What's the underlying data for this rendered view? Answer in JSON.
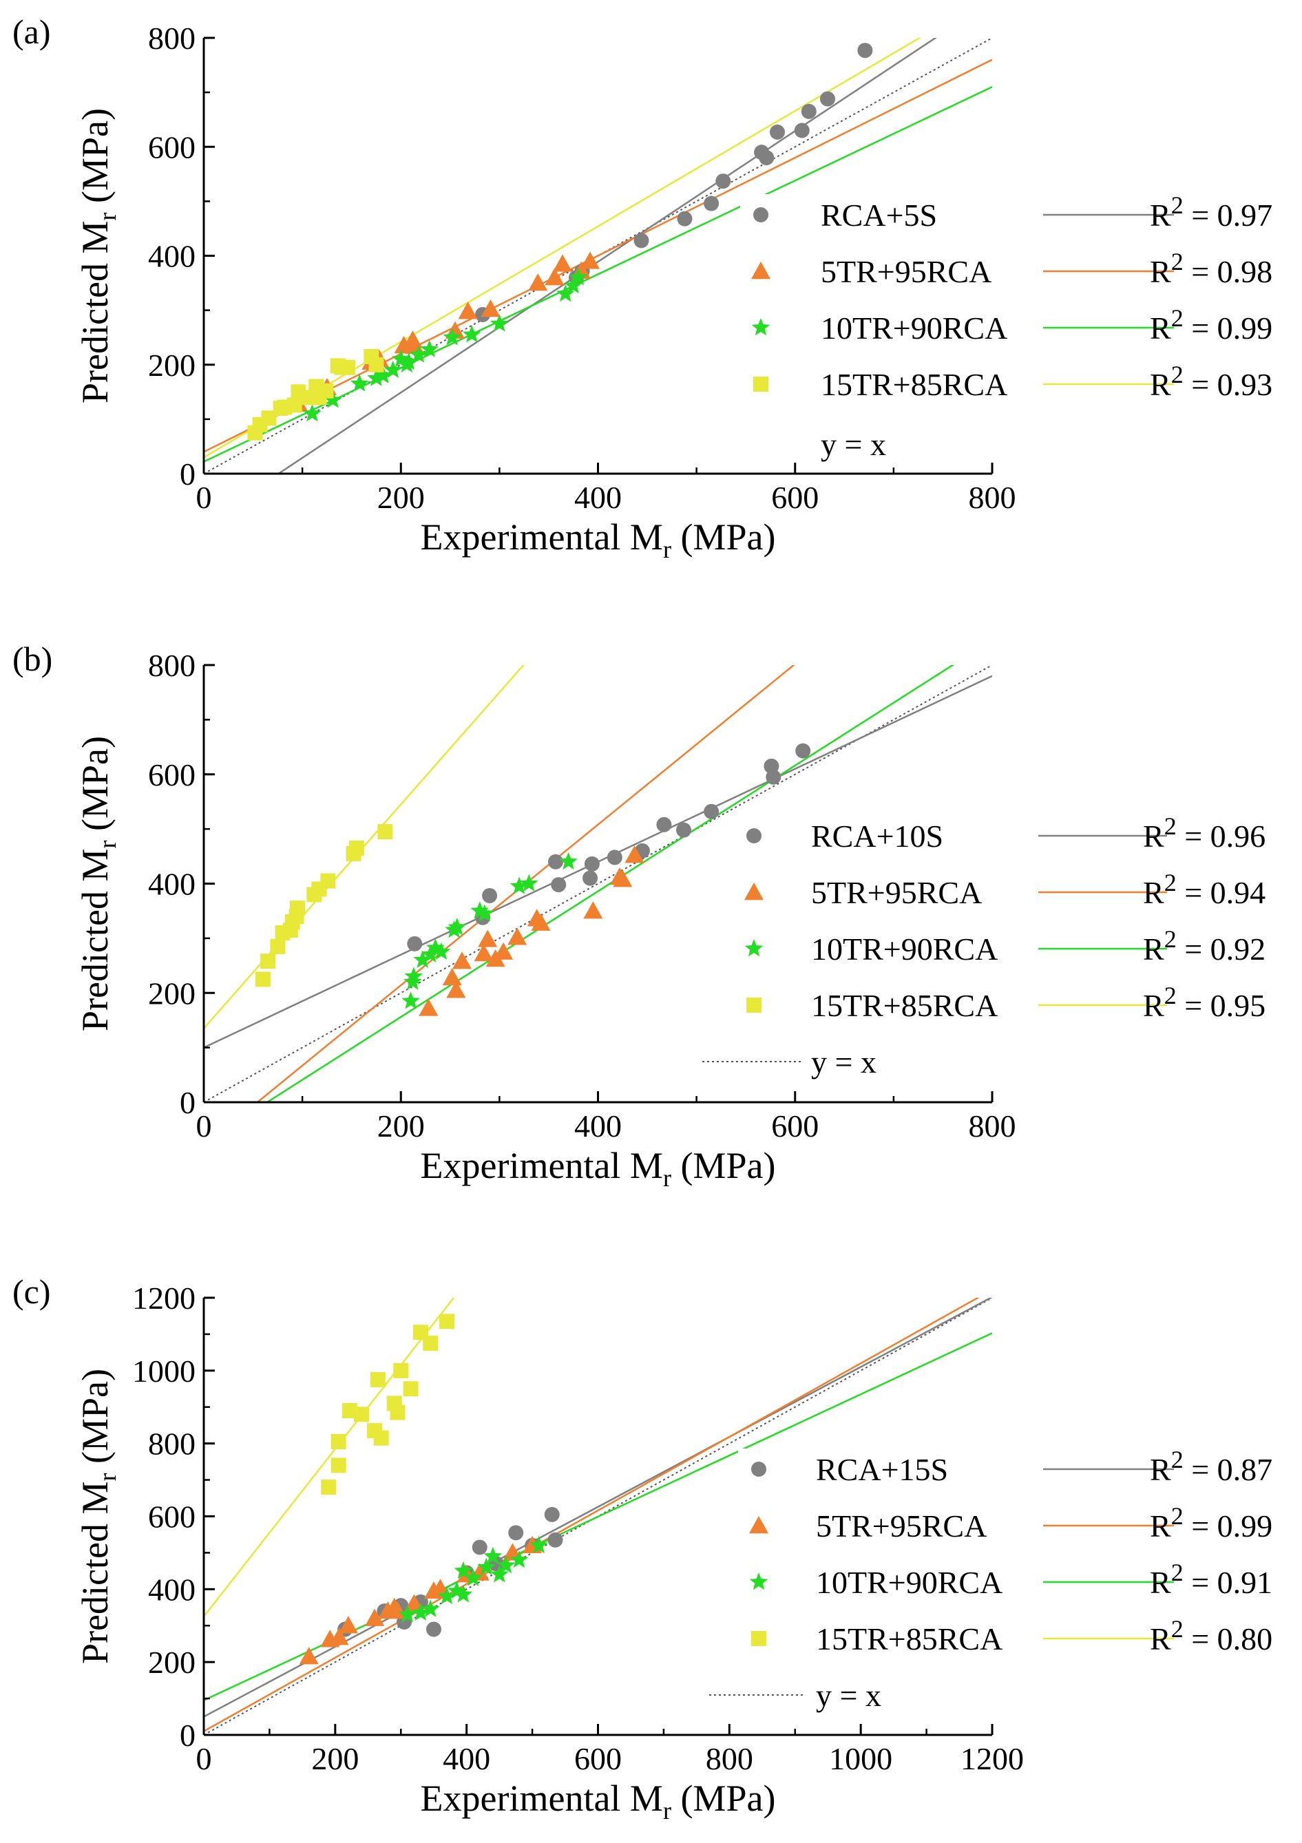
{
  "chart_data": [
    {
      "panel_label": "(a)",
      "type": "scatter",
      "xlabel": "Experimental M",
      "xlabel_sub": "r",
      "xlabel_unit": "(MPa)",
      "ylabel": "Predicted M",
      "ylabel_sub": "r",
      "ylabel_unit": "(MPa)",
      "xlim": [
        0,
        800
      ],
      "ylim": [
        0,
        800
      ],
      "xticks": [
        "0",
        "200",
        "400",
        "600",
        "800"
      ],
      "yticks": [
        "0",
        "200",
        "400",
        "600",
        "800"
      ],
      "identity_label": "y = x",
      "series": [
        {
          "name": "RCA+5S",
          "r2": "R² = 0.97",
          "r2_prefix": "R",
          "r2_exp": "2",
          "r2_value": "= 0.97",
          "marker": "circle",
          "color": "#808080",
          "fit": {
            "slope": 1.2,
            "intercept": -91
          },
          "points": [
            [
              283,
              292
            ],
            [
              378,
              360
            ],
            [
              384,
              372
            ],
            [
              444,
              428
            ],
            [
              488,
              468
            ],
            [
              515,
              496
            ],
            [
              527,
              537
            ],
            [
              566,
              590
            ],
            [
              571,
              580
            ],
            [
              582,
              627
            ],
            [
              607,
              630
            ],
            [
              614,
              665
            ],
            [
              633,
              688
            ],
            [
              671,
              777
            ]
          ]
        },
        {
          "name": "5TR+95RCA",
          "r2": "R² = 0.98",
          "r2_prefix": "R",
          "r2_exp": "2",
          "r2_value": "= 0.98",
          "marker": "triangle",
          "color": "#f07f2e",
          "fit": {
            "slope": 0.9,
            "intercept": 40
          },
          "points": [
            [
              96,
              128
            ],
            [
              125,
              158
            ],
            [
              170,
              205
            ],
            [
              178,
              210
            ],
            [
              203,
              235
            ],
            [
              212,
              245
            ],
            [
              214,
              234
            ],
            [
              255,
              262
            ],
            [
              268,
              298
            ],
            [
              291,
              302
            ],
            [
              339,
              350
            ],
            [
              356,
              360
            ],
            [
              364,
              385
            ],
            [
              392,
              390
            ],
            [
              383,
              372
            ]
          ]
        },
        {
          "name": "10TR+90RCA",
          "r2": "R² = 0.99",
          "r2_prefix": "R",
          "r2_exp": "2",
          "r2_value": "= 0.99",
          "marker": "star",
          "color": "#22dd22",
          "fit": {
            "slope": 0.86,
            "intercept": 22
          },
          "points": [
            [
              110,
              110
            ],
            [
              131,
              135
            ],
            [
              158,
              165
            ],
            [
              175,
              175
            ],
            [
              182,
              180
            ],
            [
              192,
              190
            ],
            [
              200,
              210
            ],
            [
              208,
              205
            ],
            [
              206,
              200
            ],
            [
              218,
              218
            ],
            [
              229,
              228
            ],
            [
              252,
              250
            ],
            [
              272,
              255
            ],
            [
              300,
              275
            ],
            [
              367,
              330
            ],
            [
              375,
              345
            ],
            [
              380,
              360
            ]
          ]
        },
        {
          "name": "15TR+85RCA",
          "r2": "R² = 0.93",
          "r2_prefix": "R",
          "r2_exp": "2",
          "r2_value": "= 0.93",
          "marker": "square",
          "color": "#e8e838",
          "fit": {
            "slope": 1.06,
            "intercept": 30
          },
          "points": [
            [
              52,
              75
            ],
            [
              57,
              90
            ],
            [
              66,
              102
            ],
            [
              78,
              120
            ],
            [
              82,
              122
            ],
            [
              92,
              126
            ],
            [
              96,
              150
            ],
            [
              104,
              140
            ],
            [
              114,
              160
            ],
            [
              117,
              140
            ],
            [
              124,
              152
            ],
            [
              136,
              198
            ],
            [
              140,
              195
            ],
            [
              146,
              195
            ],
            [
              170,
              215
            ],
            [
              175,
              200
            ]
          ]
        }
      ]
    },
    {
      "panel_label": "(b)",
      "type": "scatter",
      "xlabel": "Experimental M",
      "xlabel_sub": "r",
      "xlabel_unit": "(MPa)",
      "ylabel": "Predicted M",
      "ylabel_sub": "r",
      "ylabel_unit": "(MPa)",
      "xlim": [
        0,
        800
      ],
      "ylim": [
        0,
        800
      ],
      "xticks": [
        "0",
        "200",
        "400",
        "600",
        "800"
      ],
      "yticks": [
        "0",
        "200",
        "400",
        "600",
        "800"
      ],
      "identity_label": "y = x",
      "series": [
        {
          "name": "RCA+10S",
          "r2": "R² = 0.96",
          "r2_prefix": "R",
          "r2_exp": "2",
          "r2_value": "= 0.96",
          "marker": "circle",
          "color": "#808080",
          "fit": {
            "slope": 0.85,
            "intercept": 100
          },
          "points": [
            [
              214,
              290
            ],
            [
              283,
              338
            ],
            [
              290,
              378
            ],
            [
              357,
              440
            ],
            [
              360,
              398
            ],
            [
              392,
              410
            ],
            [
              394,
              436
            ],
            [
              417,
              448
            ],
            [
              445,
              460
            ],
            [
              467,
              508
            ],
            [
              487,
              498
            ],
            [
              515,
              532
            ],
            [
              576,
              615
            ],
            [
              578,
              595
            ],
            [
              608,
              643
            ]
          ]
        },
        {
          "name": "5TR+95RCA",
          "r2": "R² = 0.94",
          "r2_prefix": "R",
          "r2_exp": "2",
          "r2_value": "= 0.94",
          "marker": "triangle",
          "color": "#f07f2e",
          "fit": {
            "slope": 1.47,
            "intercept": -80
          },
          "points": [
            [
              228,
              172
            ],
            [
              252,
              228
            ],
            [
              256,
              205
            ],
            [
              262,
              258
            ],
            [
              284,
              272
            ],
            [
              288,
              298
            ],
            [
              296,
              262
            ],
            [
              304,
              275
            ],
            [
              318,
              302
            ],
            [
              338,
              336
            ],
            [
              342,
              328
            ],
            [
              395,
              350
            ],
            [
              422,
              412
            ],
            [
              425,
              408
            ],
            [
              437,
              452
            ]
          ]
        },
        {
          "name": "10TR+90RCA",
          "r2": "R² = 0.92",
          "r2_prefix": "R",
          "r2_exp": "2",
          "r2_value": "= 0.92",
          "marker": "star",
          "color": "#22dd22",
          "fit": {
            "slope": 1.15,
            "intercept": -74
          },
          "points": [
            [
              210,
              185
            ],
            [
              212,
              220
            ],
            [
              213,
              230
            ],
            [
              222,
              260
            ],
            [
              230,
              270
            ],
            [
              235,
              282
            ],
            [
              241,
              275
            ],
            [
              254,
              315
            ],
            [
              257,
              320
            ],
            [
              280,
              350
            ],
            [
              285,
              345
            ],
            [
              320,
              395
            ],
            [
              330,
              400
            ],
            [
              370,
              440
            ]
          ]
        },
        {
          "name": "15TR+85RCA",
          "r2": "R² = 0.95",
          "r2_prefix": "R",
          "r2_exp": "2",
          "r2_value": "= 0.95",
          "marker": "square",
          "color": "#e8e838",
          "fit": {
            "slope": 2.05,
            "intercept": 135
          },
          "points": [
            [
              60,
              225
            ],
            [
              65,
              258
            ],
            [
              75,
              285
            ],
            [
              80,
              310
            ],
            [
              88,
              315
            ],
            [
              90,
              330
            ],
            [
              94,
              340
            ],
            [
              95,
              355
            ],
            [
              112,
              380
            ],
            [
              117,
              390
            ],
            [
              126,
              405
            ],
            [
              152,
              455
            ],
            [
              155,
              465
            ],
            [
              184,
              495
            ]
          ]
        }
      ]
    },
    {
      "panel_label": "(c)",
      "type": "scatter",
      "xlabel": "Experimental M",
      "xlabel_sub": "r",
      "xlabel_unit": "(MPa)",
      "ylabel": "Predicted M",
      "ylabel_sub": "r",
      "ylabel_unit": "(MPa)",
      "xlim": [
        0,
        1200
      ],
      "ylim": [
        0,
        1200
      ],
      "xticks": [
        "0",
        "200",
        "400",
        "600",
        "800",
        "1000",
        "1200"
      ],
      "yticks": [
        "0",
        "200",
        "400",
        "600",
        "800",
        "1000",
        "1200"
      ],
      "identity_label": "y = x",
      "series": [
        {
          "name": "RCA+15S",
          "r2": "R² = 0.87",
          "r2_prefix": "R",
          "r2_exp": "2",
          "r2_value": "= 0.87",
          "marker": "circle",
          "color": "#808080",
          "fit": {
            "slope": 0.96,
            "intercept": 50
          },
          "points": [
            [
              215,
              290
            ],
            [
              275,
              340
            ],
            [
              300,
              355
            ],
            [
              305,
              310
            ],
            [
              330,
              365
            ],
            [
              350,
              290
            ],
            [
              400,
              445
            ],
            [
              420,
              515
            ],
            [
              445,
              470
            ],
            [
              475,
              555
            ],
            [
              500,
              520
            ],
            [
              530,
              605
            ],
            [
              535,
              535
            ]
          ]
        },
        {
          "name": "5TR+95RCA",
          "r2": "R² = 0.99",
          "r2_prefix": "R",
          "r2_exp": "2",
          "r2_value": "= 0.99",
          "marker": "triangle",
          "color": "#f07f2e",
          "fit": {
            "slope": 1.01,
            "intercept": 10
          },
          "points": [
            [
              160,
              215
            ],
            [
              192,
              262
            ],
            [
              206,
              268
            ],
            [
              220,
              300
            ],
            [
              260,
              320
            ],
            [
              280,
              340
            ],
            [
              290,
              350
            ],
            [
              295,
              340
            ],
            [
              320,
              360
            ],
            [
              350,
              395
            ],
            [
              360,
              402
            ],
            [
              400,
              440
            ],
            [
              420,
              445
            ],
            [
              470,
              500
            ],
            [
              500,
              520
            ]
          ]
        },
        {
          "name": "10TR+90RCA",
          "r2": "R² = 0.91",
          "r2_prefix": "R",
          "r2_exp": "2",
          "r2_value": "= 0.91",
          "marker": "star",
          "color": "#22dd22",
          "fit": {
            "slope": 0.84,
            "intercept": 95
          },
          "points": [
            [
              310,
              330
            ],
            [
              330,
              335
            ],
            [
              345,
              345
            ],
            [
              370,
              380
            ],
            [
              385,
              395
            ],
            [
              395,
              385
            ],
            [
              395,
              450
            ],
            [
              410,
              430
            ],
            [
              430,
              460
            ],
            [
              440,
              490
            ],
            [
              450,
              440
            ],
            [
              460,
              465
            ],
            [
              480,
              480
            ],
            [
              510,
              520
            ]
          ]
        },
        {
          "name": "15TR+85RCA",
          "r2": "R² = 0.80",
          "r2_prefix": "R",
          "r2_exp": "2",
          "r2_value": "= 0.80",
          "marker": "square",
          "color": "#e8e838",
          "fit": {
            "slope": 2.3,
            "intercept": 325
          },
          "points": [
            [
              190,
              680
            ],
            [
              205,
              740
            ],
            [
              205,
              805
            ],
            [
              222,
              890
            ],
            [
              240,
              880
            ],
            [
              260,
              835
            ],
            [
              265,
              975
            ],
            [
              270,
              815
            ],
            [
              290,
              910
            ],
            [
              295,
              885
            ],
            [
              300,
              1000
            ],
            [
              315,
              950
            ],
            [
              330,
              1105
            ],
            [
              345,
              1075
            ],
            [
              370,
              1135
            ]
          ]
        }
      ]
    }
  ]
}
